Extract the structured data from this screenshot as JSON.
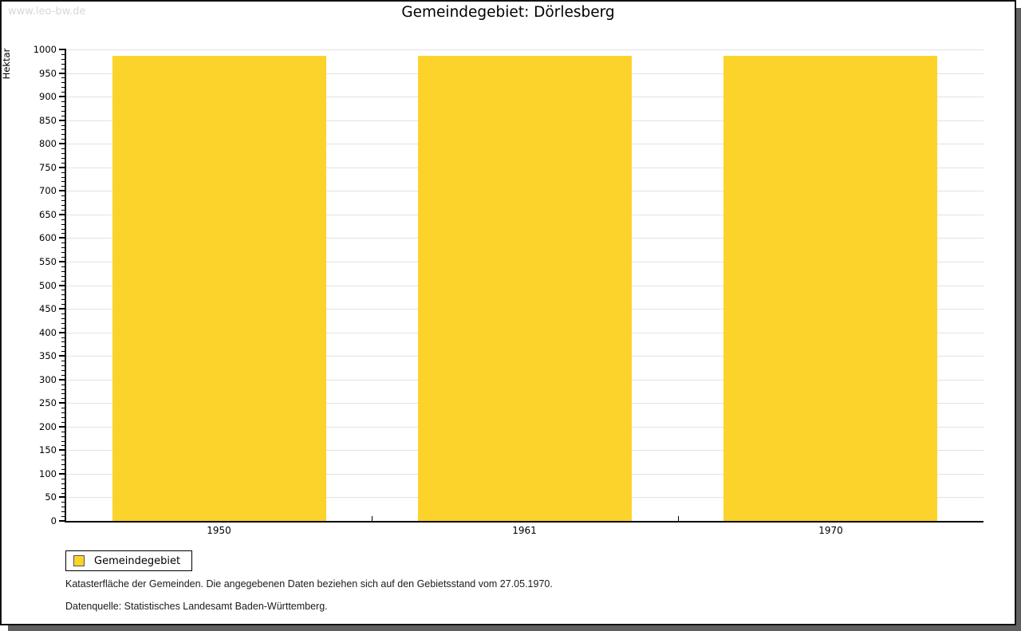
{
  "watermark": "www.leo-bw.de",
  "title": "Gemeindegebiet: Dörlesberg",
  "chart_data": {
    "type": "bar",
    "title": "Gemeindegebiet: Dörlesberg",
    "categories": [
      "1950",
      "1961",
      "1970"
    ],
    "series": [
      {
        "name": "Gemeindegebiet",
        "values": [
          987,
          987,
          987
        ]
      }
    ],
    "xlabel": "",
    "ylabel": "Hektar",
    "ylim": [
      0,
      1000
    ],
    "ytick_major_step": 50,
    "ytick_minor_step": 10,
    "bar_color": "#fcd32b",
    "grid": true,
    "legend_position": "bottom-left"
  },
  "legend": {
    "items": [
      {
        "label": "Gemeindegebiet",
        "color": "#fcd32b"
      }
    ]
  },
  "footer": {
    "line1": "Katasterfläche der Gemeinden. Die angegebenen Daten beziehen sich auf den Gebietsstand vom 27.05.1970.",
    "line2": "Datenquelle: Statistisches Landesamt Baden-Württemberg."
  }
}
